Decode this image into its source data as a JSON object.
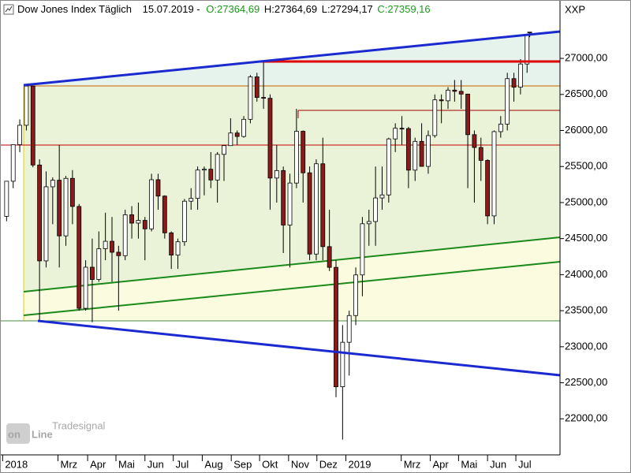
{
  "chart_data": {
    "type": "candlestick",
    "header": {
      "title": "Dow Jones Index Täglich",
      "date": "15.07.2019 -",
      "open": "O:27364,69",
      "high": "H:27364,69",
      "low": "L:27294,17",
      "close": "C:27359,16"
    },
    "y_axis_label": "XXP",
    "up_color": "#ffffff",
    "down_color": "#8b1a1a",
    "wick_color": "#000000",
    "grid": false,
    "x": [
      0,
      1,
      2,
      3,
      4,
      5,
      6,
      7,
      8,
      9,
      10,
      11,
      12,
      13,
      14,
      15,
      16,
      17,
      18,
      19,
      20,
      21,
      22,
      23,
      24,
      25,
      26,
      27,
      28,
      29,
      30,
      31,
      32,
      33,
      34,
      35,
      36,
      37,
      38,
      39,
      40,
      41,
      42,
      43,
      44,
      45,
      46,
      47,
      48,
      49,
      50,
      51,
      52,
      53,
      54,
      55,
      56,
      57,
      58,
      59,
      60,
      61,
      62,
      63,
      64,
      65,
      66,
      67,
      68,
      69,
      70,
      71,
      72,
      73,
      74,
      75,
      76,
      77,
      78,
      79,
      79.4
    ],
    "open": [
      24809,
      25296,
      25803,
      26072,
      26616,
      25521,
      24191,
      25219,
      25310,
      24538,
      25336,
      24946,
      23533,
      24103,
      23933,
      24360,
      24463,
      24311,
      24263,
      24831,
      24715,
      24753,
      24635,
      25317,
      25090,
      24580,
      24271,
      24456,
      25019,
      25058,
      25451,
      25463,
      25313,
      25669,
      25790,
      25965,
      25917,
      26155,
      26744,
      26458,
      26447,
      25340,
      25444,
      24688,
      25271,
      25989,
      25413,
      24286,
      25538,
      24389,
      24101,
      22445,
      23062,
      23433,
      23996,
      24706,
      24737,
      25064,
      25106,
      25883,
      26031,
      26026,
      25450,
      25849,
      25502,
      25929,
      26425,
      26412,
      26560,
      26543,
      26505,
      25942,
      25764,
      25585,
      24815,
      25984,
      26089,
      26719,
      26600,
      26922,
      27364.69
    ],
    "high": [
      25300,
      25803,
      26154,
      26617,
      26620,
      25600,
      25432,
      25350,
      25800,
      25370,
      25450,
      24980,
      24200,
      24500,
      24600,
      24860,
      24800,
      24400,
      24900,
      24950,
      25000,
      24800,
      25400,
      25400,
      25100,
      24600,
      24500,
      25050,
      25200,
      25500,
      25500,
      25700,
      25700,
      25800,
      26170,
      26000,
      26200,
      26769,
      26800,
      26951,
      26500,
      25800,
      25500,
      25400,
      26300,
      26000,
      25500,
      25600,
      25900,
      24900,
      24200,
      23300,
      23500,
      24100,
      24800,
      24900,
      25500,
      25500,
      25900,
      26100,
      26200,
      26050,
      25900,
      26100,
      26000,
      26500,
      26500,
      26600,
      26700,
      26700,
      26510,
      26000,
      25900,
      25600,
      26000,
      26200,
      26800,
      26800,
      26990,
      27340,
      27364.69
    ],
    "low": [
      24741,
      25200,
      25700,
      26000,
      25490,
      23360,
      24100,
      24700,
      24100,
      24400,
      24700,
      23500,
      23500,
      23340,
      23900,
      24200,
      23900,
      23500,
      24200,
      24500,
      24500,
      24200,
      24600,
      24900,
      24500,
      24080,
      24080,
      24400,
      24900,
      24900,
      25100,
      25200,
      25000,
      25300,
      25800,
      25800,
      25900,
      26100,
      26400,
      26300,
      24900,
      25000,
      24300,
      24100,
      25200,
      25000,
      24200,
      24200,
      24200,
      24050,
      22300,
      21712,
      22600,
      23300,
      23700,
      24400,
      24400,
      24900,
      25000,
      25700,
      25800,
      25200,
      25300,
      25500,
      25400,
      25900,
      26100,
      26300,
      26400,
      26300,
      25200,
      25000,
      25300,
      24700,
      24700,
      25900,
      26000,
      26400,
      26500,
      26800,
      27294.17
    ],
    "close": [
      25296,
      25803,
      26072,
      26616,
      25521,
      24191,
      25219,
      25310,
      24538,
      25336,
      24946,
      23533,
      24103,
      23933,
      24360,
      24463,
      24311,
      24263,
      24831,
      24715,
      24753,
      24635,
      25317,
      25090,
      24580,
      24271,
      24456,
      25019,
      25058,
      25451,
      25463,
      25313,
      25669,
      25790,
      25965,
      25917,
      26155,
      26744,
      26458,
      26447,
      25340,
      25444,
      24688,
      25271,
      25989,
      25413,
      24286,
      25538,
      24389,
      24101,
      22445,
      23062,
      23433,
      23996,
      24706,
      24737,
      25064,
      25106,
      25883,
      26031,
      26026,
      25450,
      25849,
      25502,
      25929,
      26425,
      26412,
      26560,
      26543,
      26505,
      25942,
      25764,
      25585,
      24815,
      25984,
      26089,
      26719,
      26600,
      26922,
      27332,
      27359.16
    ],
    "xlim": [
      -1,
      84
    ],
    "xticks": [
      {
        "value": -0.6,
        "label": "2018"
      },
      {
        "value": 7.8,
        "label": "Mrz"
      },
      {
        "value": 12.3,
        "label": "Apr"
      },
      {
        "value": 16.6,
        "label": "Mai"
      },
      {
        "value": 21.0,
        "label": "Jun"
      },
      {
        "value": 25.3,
        "label": "Jul"
      },
      {
        "value": 29.7,
        "label": "Aug"
      },
      {
        "value": 34.1,
        "label": "Sep"
      },
      {
        "value": 38.4,
        "label": "Okt"
      },
      {
        "value": 42.8,
        "label": "Nov"
      },
      {
        "value": 47.1,
        "label": "Dez"
      },
      {
        "value": 51.5,
        "label": "2019"
      },
      {
        "value": 59.9,
        "label": "Mrz"
      },
      {
        "value": 64.3,
        "label": "Apr"
      },
      {
        "value": 68.6,
        "label": "Mai"
      },
      {
        "value": 73.0,
        "label": "Jun"
      },
      {
        "value": 77.3,
        "label": "Jul"
      }
    ],
    "ylim": [
      21500,
      27810
    ],
    "yticks": [
      {
        "value": 22000,
        "label": "22000,00"
      },
      {
        "value": 22500,
        "label": "22500,00"
      },
      {
        "value": 23000,
        "label": "23000,00"
      },
      {
        "value": 23500,
        "label": "23500,00"
      },
      {
        "value": 24000,
        "label": "24000,00"
      },
      {
        "value": 24500,
        "label": "24500,00"
      },
      {
        "value": 25000,
        "label": "25000,00"
      },
      {
        "value": 25500,
        "label": "25500,00"
      },
      {
        "value": 26000,
        "label": "26000,00"
      },
      {
        "value": 26500,
        "label": "26500,00"
      },
      {
        "value": 27000,
        "label": "27000,00"
      }
    ]
  }
}
